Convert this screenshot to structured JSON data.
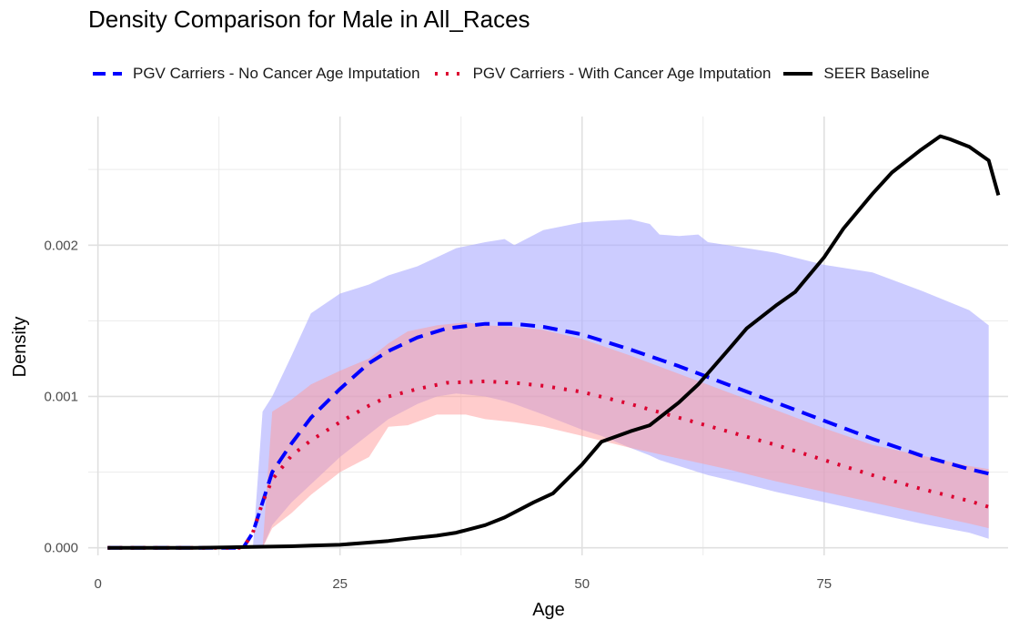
{
  "chart_data": {
    "type": "line",
    "title": "Density Comparison for Male in All_Races",
    "xlabel": "Age",
    "ylabel": "Density",
    "xlim": [
      -1,
      94
    ],
    "ylim": [
      -5e-05,
      0.00285
    ],
    "x_ticks": [
      0,
      25,
      50,
      75
    ],
    "y_ticks": [
      0.0,
      0.001,
      0.002
    ],
    "y_tick_labels": [
      "0.000",
      "0.001",
      "0.002"
    ],
    "grid": true,
    "legend_position": "top",
    "series": [
      {
        "name": "PGV Carriers - No Cancer Age Imputation",
        "style": "dashed",
        "color": "#0000ff",
        "x": [
          1,
          5,
          10,
          15,
          16,
          17,
          18,
          20,
          22,
          25,
          28,
          30,
          33,
          36,
          40,
          43,
          46,
          50,
          55,
          60,
          65,
          70,
          75,
          80,
          85,
          90,
          92
        ],
        "y": [
          0,
          0,
          0,
          0,
          0.0001,
          0.0003,
          0.0005,
          0.00069,
          0.00086,
          0.00105,
          0.00122,
          0.0013,
          0.00139,
          0.00145,
          0.00148,
          0.00148,
          0.00146,
          0.00141,
          0.00131,
          0.0012,
          0.00108,
          0.00096,
          0.00084,
          0.00072,
          0.00061,
          0.00052,
          0.00049
        ]
      },
      {
        "name": "PGV Carriers - With Cancer Age Imputation",
        "style": "dotted",
        "color": "#dc0030",
        "x": [
          1,
          5,
          10,
          15,
          16,
          17,
          18,
          20,
          22,
          25,
          28,
          30,
          33,
          36,
          40,
          43,
          46,
          50,
          55,
          60,
          65,
          70,
          75,
          80,
          85,
          90,
          92
        ],
        "y": [
          0,
          0,
          0,
          0,
          0.0001,
          0.0003,
          0.00045,
          0.00061,
          0.00071,
          0.00083,
          0.00094,
          0.001,
          0.00105,
          0.00109,
          0.0011,
          0.00109,
          0.00107,
          0.00103,
          0.00095,
          0.00086,
          0.00077,
          0.00068,
          0.00058,
          0.00048,
          0.00039,
          0.00031,
          0.00027
        ]
      },
      {
        "name": "SEER Baseline",
        "style": "solid",
        "color": "#000000",
        "x": [
          1,
          5,
          10,
          15,
          20,
          22,
          25,
          27,
          30,
          32,
          35,
          37,
          40,
          42,
          45,
          47,
          50,
          52,
          55,
          57,
          60,
          62,
          65,
          67,
          70,
          72,
          75,
          77,
          80,
          82,
          85,
          87,
          88,
          90,
          92,
          93
        ],
        "y": [
          0,
          0,
          0,
          5e-06,
          1e-05,
          1.5e-05,
          2e-05,
          3e-05,
          4.5e-05,
          6e-05,
          8e-05,
          0.0001,
          0.00015,
          0.0002,
          0.0003,
          0.00036,
          0.00055,
          0.0007,
          0.00077,
          0.00081,
          0.00096,
          0.00108,
          0.0013,
          0.00145,
          0.0016,
          0.00169,
          0.00192,
          0.00211,
          0.00234,
          0.00248,
          0.00263,
          0.00272,
          0.0027,
          0.00265,
          0.00256,
          0.00233
        ]
      }
    ],
    "bands": [
      {
        "for_series": "PGV Carriers - No Cancer Age Imputation",
        "color": "#aaaaff",
        "opacity": 0.6,
        "x": [
          15,
          16,
          17,
          18,
          20,
          22,
          25,
          28,
          30,
          33,
          35,
          37,
          40,
          42,
          43,
          46,
          50,
          52,
          55,
          57,
          58,
          60,
          62,
          63,
          65,
          70,
          75,
          80,
          85,
          90,
          92
        ],
        "lower": [
          0,
          0,
          0,
          0.00015,
          0.0003,
          0.00042,
          0.0006,
          0.00075,
          0.00085,
          0.00095,
          0.001,
          0.00102,
          0.001,
          0.00097,
          0.00095,
          0.00088,
          0.00078,
          0.00074,
          0.00066,
          0.00061,
          0.00058,
          0.00054,
          0.0005,
          0.00048,
          0.00045,
          0.00037,
          0.0003,
          0.00023,
          0.00016,
          0.0001,
          6e-05
        ],
        "upper": [
          0,
          0,
          0.0009,
          0.001,
          0.00127,
          0.00155,
          0.00168,
          0.00174,
          0.0018,
          0.00186,
          0.00192,
          0.00198,
          0.00202,
          0.00204,
          0.002,
          0.0021,
          0.00215,
          0.00216,
          0.00217,
          0.00214,
          0.00207,
          0.00206,
          0.00207,
          0.00202,
          0.002,
          0.00195,
          0.00187,
          0.00182,
          0.0017,
          0.00157,
          0.00147
        ]
      },
      {
        "for_series": "PGV Carriers - With Cancer Age Imputation",
        "color": "#ff9999",
        "opacity": 0.5,
        "x": [
          15,
          16,
          17,
          18,
          20,
          22,
          25,
          28,
          30,
          32,
          35,
          38,
          40,
          43,
          46,
          50,
          55,
          60,
          65,
          70,
          75,
          80,
          85,
          90,
          92
        ],
        "lower": [
          0,
          0,
          0,
          0.00013,
          0.00023,
          0.00035,
          0.0005,
          0.0006,
          0.0008,
          0.00081,
          0.00088,
          0.00088,
          0.00085,
          0.00083,
          0.0008,
          0.00074,
          0.00066,
          0.00059,
          0.00052,
          0.00044,
          0.00037,
          0.0003,
          0.00023,
          0.00016,
          0.00013
        ],
        "upper": [
          0,
          0,
          0,
          0.0009,
          0.00098,
          0.00108,
          0.00117,
          0.00125,
          0.00135,
          0.00143,
          0.00147,
          0.00149,
          0.00147,
          0.00146,
          0.00144,
          0.00138,
          0.00127,
          0.00115,
          0.00103,
          0.00091,
          0.00079,
          0.00068,
          0.00061,
          0.00054,
          0.00052
        ]
      }
    ]
  }
}
